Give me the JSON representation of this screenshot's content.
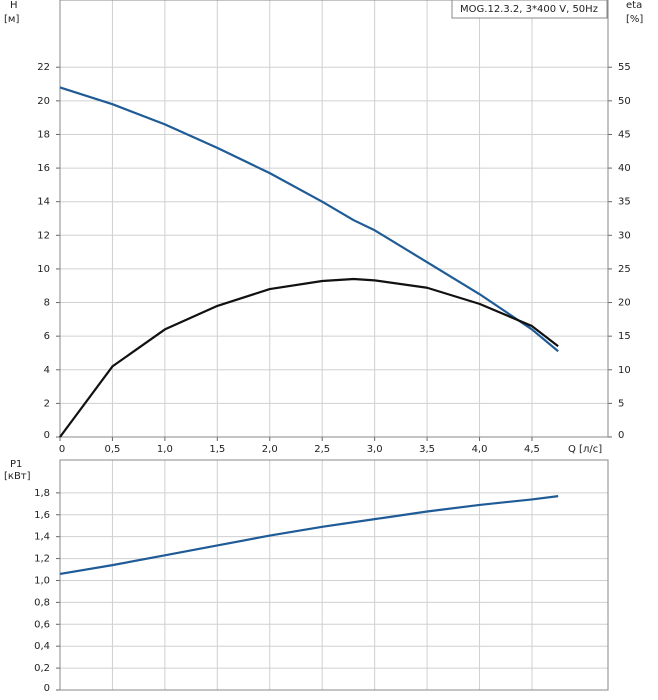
{
  "chart_data": [
    {
      "type": "line",
      "ylabel": "H",
      "yunit": "[м]",
      "y2label": "eta",
      "y2unit": "[%]",
      "xlabel": "Q [л/с]",
      "annotation": "MOG.12.3.2, 3*400 V, 50Hz",
      "grid": true,
      "xlim": [
        0,
        5.225
      ],
      "xticks": [
        0,
        {
          "value": 0.5,
          "label": "0,5"
        },
        {
          "value": 1.0,
          "label": "1,0"
        },
        {
          "value": 1.5,
          "label": "1,5"
        },
        {
          "value": 2.0,
          "label": "2,0"
        },
        {
          "value": 2.5,
          "label": "2,5"
        },
        {
          "value": 3.0,
          "label": "3,0"
        },
        {
          "value": 3.5,
          "label": "3,5"
        },
        {
          "value": 4.0,
          "label": "4,0"
        },
        {
          "value": 4.5,
          "label": "4,5"
        }
      ],
      "ylim": [
        0,
        26
      ],
      "yticks": [
        0,
        2,
        4,
        6,
        8,
        10,
        12,
        14,
        16,
        18,
        20,
        22
      ],
      "y2lim": [
        0,
        65
      ],
      "y2ticks": [
        0,
        5,
        10,
        15,
        20,
        25,
        30,
        35,
        40,
        45,
        50,
        55
      ],
      "x": [
        0,
        0.5,
        1.0,
        1.5,
        2.0,
        2.5,
        2.8,
        3.0,
        3.5,
        4.0,
        4.5,
        4.75
      ],
      "series": [
        {
          "color": "#1f5b96",
          "values": [
            20.8,
            19.8,
            18.6,
            17.2,
            15.7,
            14.0,
            12.9,
            12.3,
            10.4,
            8.5,
            6.4,
            5.1
          ]
        },
        {
          "color": "#111111",
          "axis": "y2",
          "values": [
            0,
            10.5,
            16,
            19.5,
            22,
            23.2,
            23.5,
            23.3,
            22.2,
            19.8,
            16.5,
            13.5
          ]
        }
      ]
    },
    {
      "type": "line",
      "ylabel": "P1",
      "yunit": "[кВт]",
      "grid": true,
      "xlim": [
        0,
        5.225
      ],
      "ylim": [
        0,
        2.1
      ],
      "yticks": [
        0,
        {
          "value": 0.2,
          "label": "0,2"
        },
        {
          "value": 0.4,
          "label": "0,4"
        },
        {
          "value": 0.6,
          "label": "0,6"
        },
        {
          "value": 0.8,
          "label": "0,8"
        },
        {
          "value": 1.0,
          "label": "1,0"
        },
        {
          "value": 1.2,
          "label": "1,2"
        },
        {
          "value": 1.4,
          "label": "1,4"
        },
        {
          "value": 1.6,
          "label": "1,6"
        },
        {
          "value": 1.8,
          "label": "1,8"
        }
      ],
      "x": [
        0,
        0.5,
        1.0,
        1.5,
        2.0,
        2.5,
        3.0,
        3.5,
        4.0,
        4.5,
        4.75
      ],
      "series": [
        {
          "color": "#1f5b96",
          "values": [
            1.06,
            1.14,
            1.23,
            1.32,
            1.41,
            1.49,
            1.56,
            1.63,
            1.69,
            1.74,
            1.77
          ]
        }
      ]
    }
  ]
}
